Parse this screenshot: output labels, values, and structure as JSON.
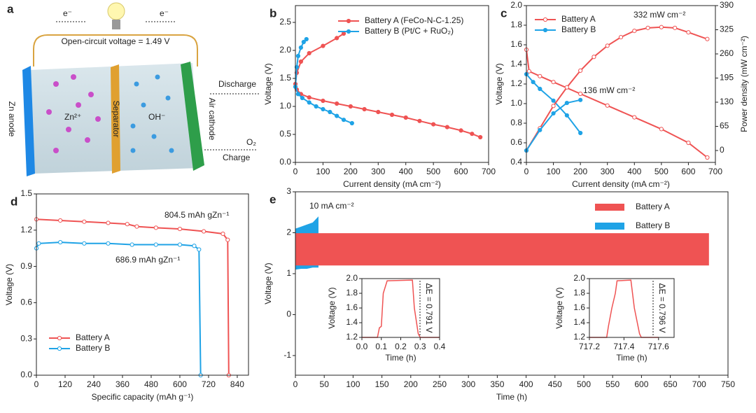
{
  "schematic": {
    "panel": "a",
    "electron_left": "e⁻",
    "electron_right": "e⁻",
    "ocv": "Open-circuit voltage = 1.49 V",
    "discharge": "Discharge",
    "charge": "Charge",
    "oxygen": "O₂",
    "anode": "Zn anode",
    "separator": "Separator",
    "cathode": "Air cathode",
    "zinc_ion": "Zn²⁺",
    "hydroxide": "OH⁻"
  },
  "chart_data": [
    {
      "type": "line",
      "panel": "b",
      "xlabel": "Current density (mA cm⁻²)",
      "ylabel": "Voltage (V)",
      "xlim": [
        0,
        700
      ],
      "xticks": [
        0,
        100,
        200,
        300,
        400,
        500,
        600,
        700
      ],
      "ylim": [
        0,
        2.8
      ],
      "yticks": [
        {
          "value": 0,
          "label": "0.0"
        },
        {
          "value": 0.5,
          "label": "0.5"
        },
        {
          "value": 1,
          "label": "1.0"
        },
        {
          "value": 1.5,
          "label": "1.5"
        },
        {
          "value": 2,
          "label": "2.0"
        },
        {
          "value": 2.5,
          "label": "2.5"
        }
      ],
      "legend": "upper right",
      "series": [
        {
          "name": "Battery A (FeCo-N-C-1.25)",
          "color": "#ef5353",
          "marker": "filled",
          "x": [
            175,
            150,
            100,
            50,
            20,
            5,
            0,
            5,
            20,
            50,
            100,
            150,
            200,
            250,
            300,
            350,
            400,
            450,
            500,
            550,
            600,
            640,
            670
          ],
          "values": [
            2.3,
            2.22,
            2.08,
            1.95,
            1.8,
            1.6,
            1.4,
            1.3,
            1.22,
            1.16,
            1.1,
            1.05,
            1.0,
            0.95,
            0.9,
            0.85,
            0.8,
            0.74,
            0.68,
            0.63,
            0.57,
            0.51,
            0.45
          ]
        },
        {
          "name": "Battery B (Pt/C + RuO₂)",
          "color": "#1fa3e6",
          "marker": "filled",
          "x": [
            40,
            30,
            20,
            10,
            5,
            0,
            10,
            25,
            50,
            75,
            100,
            125,
            150,
            175,
            205
          ],
          "values": [
            2.2,
            2.15,
            2.05,
            1.9,
            1.7,
            1.35,
            1.22,
            1.15,
            1.07,
            1.0,
            0.95,
            0.9,
            0.83,
            0.76,
            0.7
          ]
        }
      ]
    },
    {
      "type": "line",
      "panel": "c",
      "xlabel": "Current density (mA cm⁻²)",
      "ylabel": "Voltage (V)",
      "y2label": "Power density (mW cm⁻²)",
      "xlim": [
        0,
        700
      ],
      "xticks": [
        0,
        100,
        200,
        300,
        400,
        500,
        600,
        700
      ],
      "ylim": [
        0.4,
        2.0
      ],
      "yticks": [
        0.4,
        0.6,
        0.8,
        {
          "value": 1,
          "label": "1.0"
        },
        1.2,
        1.4,
        1.6,
        1.8,
        {
          "value": 2,
          "label": "2.0"
        }
      ],
      "y2lim": [
        -32,
        390
      ],
      "y2ticks": [
        0,
        65,
        130,
        195,
        260,
        325,
        390
      ],
      "legend": "upper left",
      "annotations": [
        "332 mW cm⁻²",
        "136 mW cm⁻²"
      ],
      "series": [
        {
          "name": "Battery A",
          "color": "#ef5353",
          "marker": "open",
          "x": [
            0,
            10,
            50,
            100,
            200,
            300,
            400,
            500,
            600,
            670
          ],
          "values": [
            1.55,
            1.33,
            1.28,
            1.22,
            1.1,
            0.98,
            0.86,
            0.74,
            0.6,
            0.45
          ]
        },
        {
          "name": "Battery B",
          "color": "#1fa3e6",
          "marker": "filled",
          "x": [
            0,
            25,
            50,
            100,
            150,
            200
          ],
          "values": [
            1.3,
            1.22,
            1.15,
            1.03,
            0.88,
            0.7
          ]
        },
        {
          "color": "#ef5353",
          "marker": "open",
          "axis": "y2",
          "x": [
            0,
            50,
            100,
            150,
            200,
            250,
            300,
            350,
            400,
            450,
            500,
            550,
            600,
            670
          ],
          "values": [
            0,
            60,
            120,
            170,
            215,
            252,
            282,
            305,
            322,
            330,
            332,
            330,
            318,
            300
          ]
        },
        {
          "color": "#1fa3e6",
          "marker": "filled",
          "axis": "y2",
          "x": [
            0,
            50,
            100,
            150,
            200
          ],
          "values": [
            0,
            55,
            100,
            128,
            136
          ]
        }
      ]
    },
    {
      "type": "line",
      "panel": "d",
      "xlabel": "Specific capacity (mAh g⁻¹)",
      "ylabel": "Voltage (V)",
      "xlim": [
        0,
        887
      ],
      "xticks": [
        0,
        120,
        240,
        360,
        480,
        600,
        720,
        840
      ],
      "ylim": [
        0,
        1.5
      ],
      "yticks": [
        {
          "value": 0,
          "label": "0.0"
        },
        0.3,
        0.6,
        0.9,
        1.2,
        1.5
      ],
      "legend": "lower left",
      "annotations": [
        "804.5 mAh gZn⁻¹",
        "686.9 mAh gZn⁻¹"
      ],
      "series": [
        {
          "name": "Battery A",
          "color": "#ef5353",
          "marker": "open",
          "x": [
            0,
            100,
            200,
            300,
            380,
            420,
            500,
            600,
            700,
            780,
            800,
            804.5
          ],
          "values": [
            1.29,
            1.28,
            1.27,
            1.26,
            1.25,
            1.23,
            1.22,
            1.21,
            1.19,
            1.17,
            1.12,
            0
          ]
        },
        {
          "name": "Battery B",
          "color": "#1fa3e6",
          "marker": "open",
          "x": [
            0,
            10,
            100,
            200,
            300,
            400,
            500,
            600,
            660,
            680,
            686.9
          ],
          "values": [
            1.05,
            1.09,
            1.1,
            1.09,
            1.09,
            1.08,
            1.08,
            1.08,
            1.07,
            1.04,
            0
          ]
        }
      ]
    },
    {
      "type": "band",
      "panel": "e",
      "xlabel": "Time (h)",
      "ylabel": "Voltage (V)",
      "xlim": [
        0,
        750
      ],
      "xticks": [
        0,
        50,
        100,
        150,
        200,
        250,
        300,
        350,
        400,
        450,
        500,
        550,
        600,
        650,
        700,
        750
      ],
      "ylim": [
        -1.48,
        3
      ],
      "yticks": [
        -1,
        0,
        1,
        2,
        3
      ],
      "legend": "upper right",
      "annotations": [
        "10 mA cm⁻²"
      ],
      "series": [
        {
          "name": "Battery A",
          "color": "#ef5353",
          "x": [
            0,
            717
          ],
          "charge": [
            1.99,
            1.99
          ],
          "discharge": [
            1.2,
            1.2
          ]
        },
        {
          "name": "Battery B",
          "color": "#1fa3e6",
          "x": [
            0,
            10,
            20,
            30,
            40
          ],
          "charge": [
            2.1,
            2.15,
            2.2,
            2.25,
            2.4
          ],
          "discharge": [
            1.1,
            1.12,
            1.12,
            1.15,
            1.15
          ]
        }
      ]
    },
    {
      "type": "line",
      "xlabel": "Time (h)",
      "ylabel": "Voltage (V)",
      "xlim": [
        0,
        0.4
      ],
      "xticks": [
        {
          "value": 0,
          "label": "0.0"
        },
        0.1,
        0.2,
        0.3,
        0.4
      ],
      "ylim": [
        1.2,
        2.0
      ],
      "yticks": [
        1.2,
        1.4,
        1.6,
        1.8,
        {
          "value": 2,
          "label": "2.0"
        }
      ],
      "annotations": [
        "ΔE = 0.791 V"
      ],
      "series": [
        {
          "color": "#ef5353",
          "x": [
            0,
            0.08,
            0.09,
            0.1,
            0.11,
            0.13,
            0.26,
            0.27,
            0.29,
            0.3,
            0.4
          ],
          "values": [
            1.2,
            1.2,
            1.33,
            1.35,
            1.8,
            1.97,
            1.98,
            1.6,
            1.25,
            1.2,
            1.2
          ]
        }
      ]
    },
    {
      "type": "line",
      "xlabel": "Time (h)",
      "ylabel": "Voltage (V)",
      "xlim": [
        717.2,
        717.69
      ],
      "xticks": [
        717.2,
        717.4,
        717.6
      ],
      "ylim": [
        1.2,
        2.0
      ],
      "yticks": [
        1.2,
        1.4,
        1.6,
        1.8,
        {
          "value": 2,
          "label": "2.0"
        }
      ],
      "annotations": [
        "ΔE = 0.796 V"
      ],
      "series": [
        {
          "color": "#ef5353",
          "x": [
            717.2,
            717.3,
            717.31,
            717.33,
            717.35,
            717.36,
            717.44,
            717.46,
            717.49,
            717.5,
            717.6
          ],
          "values": [
            1.2,
            1.2,
            1.35,
            1.6,
            1.8,
            1.97,
            1.98,
            1.6,
            1.25,
            1.2,
            1.2
          ]
        }
      ]
    }
  ]
}
